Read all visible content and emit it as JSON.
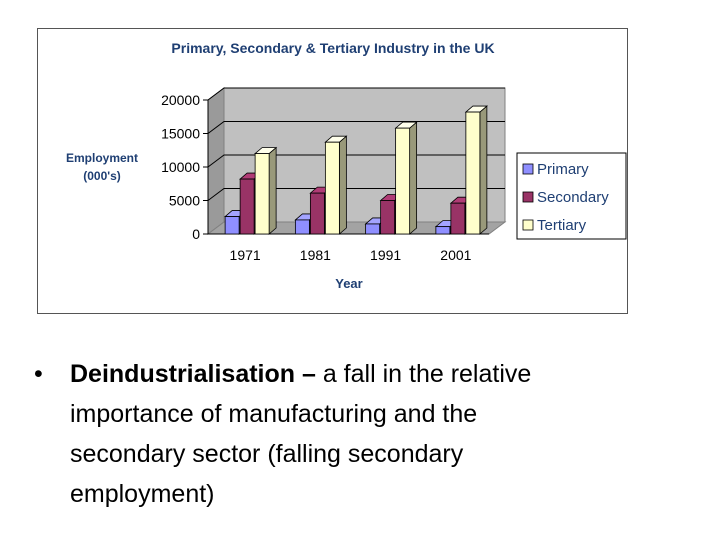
{
  "chart_data": {
    "type": "bar",
    "title": "Primary, Secondary & Tertiary Industry in the UK",
    "xlabel": "Year",
    "ylabel": [
      "Employment",
      "(000's)"
    ],
    "categories": [
      "1971",
      "1981",
      "1991",
      "2001"
    ],
    "series": [
      {
        "name": "Primary",
        "values": [
          2600,
          2100,
          1500,
          1100
        ],
        "color": "#8f8fff"
      },
      {
        "name": "Secondary",
        "values": [
          8200,
          6100,
          5000,
          4600
        ],
        "color": "#993366"
      },
      {
        "name": "Tertiary",
        "values": [
          12000,
          13700,
          15800,
          18200
        ],
        "color": "#ffffcc"
      }
    ],
    "yticks": [
      "20000",
      "15000",
      "10000",
      "5000",
      "0"
    ],
    "ytick_values": [
      20000,
      15000,
      10000,
      5000,
      0
    ],
    "ylim": [
      0,
      20000
    ],
    "grid": true,
    "style": "3d-clustered-column",
    "legend_position": "right",
    "wall_color": "#c0c0c0"
  },
  "text": {
    "bullet_symbol": "•",
    "term": "Deindustrialisation –",
    "definition": " a fall in the relative",
    "lines": [
      "importance of manufacturing and the",
      "secondary sector (falling secondary",
      "employment)"
    ]
  }
}
